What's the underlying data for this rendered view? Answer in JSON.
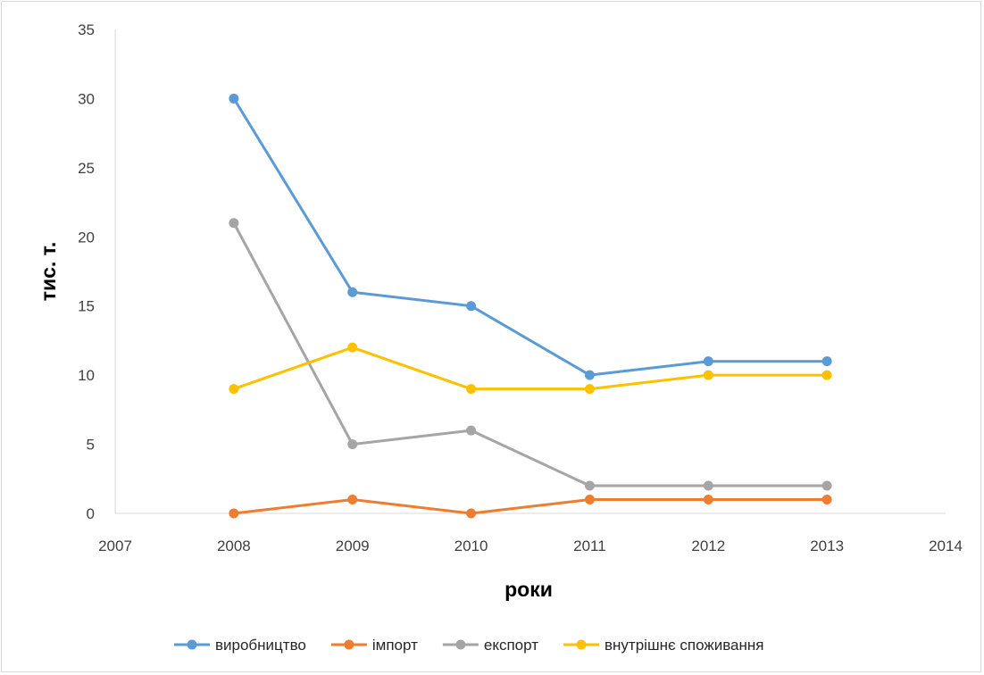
{
  "chart_data": {
    "type": "line",
    "title": "",
    "xlabel": "роки",
    "ylabel": "тис. т.",
    "xlim": [
      2007,
      2014
    ],
    "ylim": [
      0,
      35
    ],
    "x_ticks": [
      2007,
      2008,
      2009,
      2010,
      2011,
      2012,
      2013,
      2014
    ],
    "y_ticks": [
      0,
      5,
      10,
      15,
      20,
      25,
      30,
      35
    ],
    "grid": false,
    "legend_position": "bottom",
    "x": [
      2008,
      2009,
      2010,
      2011,
      2012,
      2013
    ],
    "series": [
      {
        "name": "виробництво",
        "color": "#5b9bd5",
        "values": [
          30,
          16,
          15,
          10,
          11,
          11
        ]
      },
      {
        "name": "імпорт",
        "color": "#ed7d31",
        "values": [
          0,
          1,
          0,
          1,
          1,
          1
        ]
      },
      {
        "name": "експорт",
        "color": "#a5a5a5",
        "values": [
          21,
          5,
          6,
          2,
          2,
          2
        ]
      },
      {
        "name": "внутрішнє споживання",
        "color": "#ffc000",
        "values": [
          9,
          12,
          9,
          9,
          10,
          10
        ]
      }
    ]
  }
}
